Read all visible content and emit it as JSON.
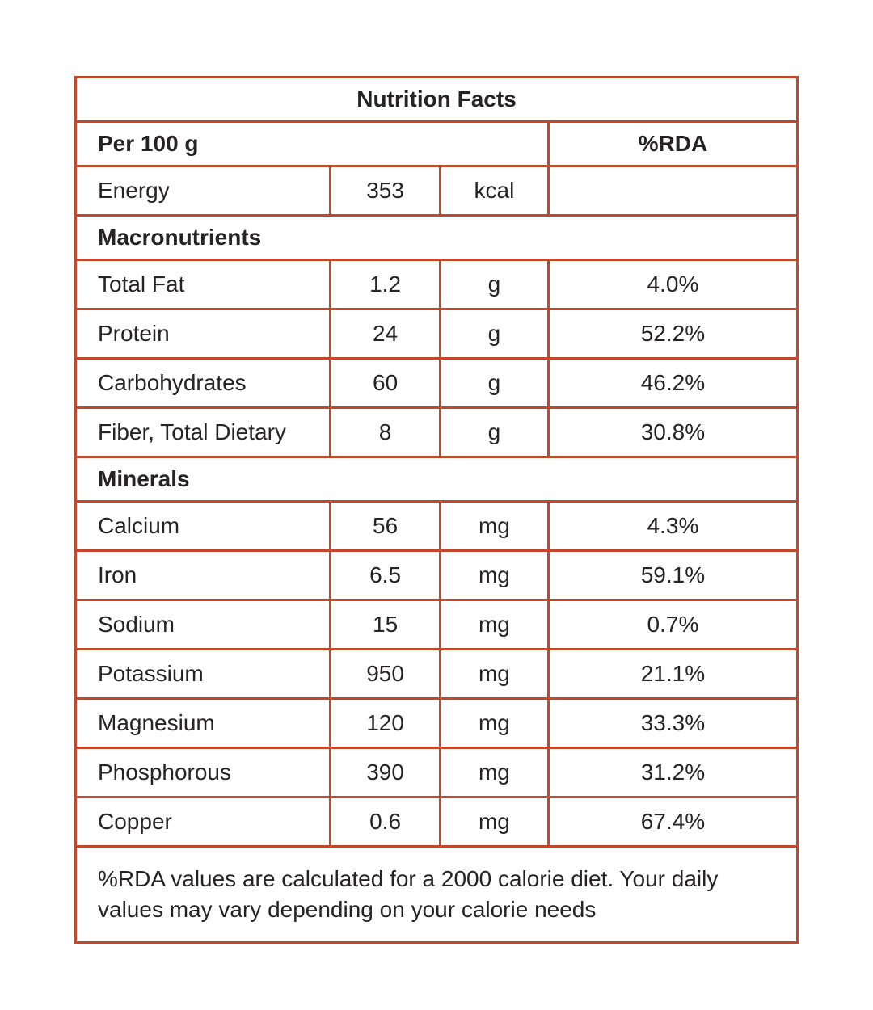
{
  "table": {
    "title": "Nutrition Facts",
    "serving_header": "Per 100 g",
    "rda_header": "%RDA",
    "energy": {
      "name": "Energy",
      "value": "353",
      "unit": "kcal",
      "rda": ""
    },
    "macronutrients": {
      "header": "Macronutrients",
      "rows": [
        {
          "name": "Total Fat",
          "value": "1.2",
          "unit": "g",
          "rda": "4.0%"
        },
        {
          "name": "Protein",
          "value": "24",
          "unit": "g",
          "rda": "52.2%"
        },
        {
          "name": "Carbohydrates",
          "value": "60",
          "unit": "g",
          "rda": "46.2%"
        },
        {
          "name": "Fiber, Total Dietary",
          "value": "8",
          "unit": "g",
          "rda": "30.8%"
        }
      ]
    },
    "minerals": {
      "header": "Minerals",
      "rows": [
        {
          "name": "Calcium",
          "value": "56",
          "unit": "mg",
          "rda": "4.3%"
        },
        {
          "name": "Iron",
          "value": "6.5",
          "unit": "mg",
          "rda": "59.1%"
        },
        {
          "name": "Sodium",
          "value": "15",
          "unit": "mg",
          "rda": "0.7%"
        },
        {
          "name": "Potassium",
          "value": "950",
          "unit": "mg",
          "rda": "21.1%"
        },
        {
          "name": "Magnesium",
          "value": "120",
          "unit": "mg",
          "rda": "33.3%"
        },
        {
          "name": "Phosphorous",
          "value": "390",
          "unit": "mg",
          "rda": "31.2%"
        },
        {
          "name": "Copper",
          "value": "0.6",
          "unit": "mg",
          "rda": "67.4%"
        }
      ]
    },
    "footnote": "%RDA values are calculated for a 2000 calorie diet. Your daily values may vary depending on your calorie needs"
  },
  "colors": {
    "border": "#c2482b",
    "text": "#272324",
    "background": "#ffffff"
  }
}
